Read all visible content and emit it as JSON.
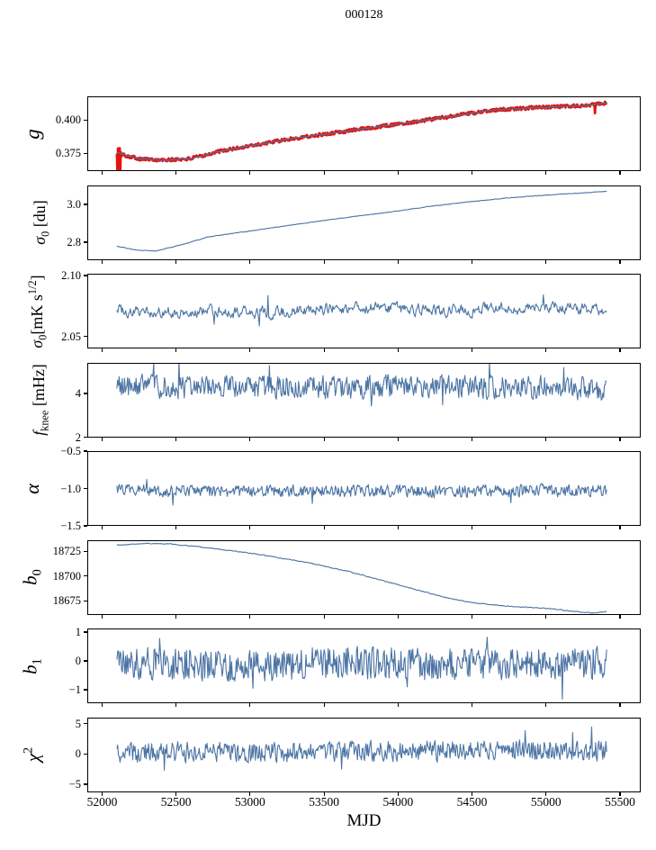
{
  "chart_data": {
    "type": "line",
    "title": "000128",
    "xlabel": "MJD",
    "xlim": [
      51900,
      55640
    ],
    "xticks": [
      {
        "v": 52000,
        "label": "52000"
      },
      {
        "v": 52500,
        "label": "52500"
      },
      {
        "v": 53000,
        "label": "53000"
      },
      {
        "v": 53500,
        "label": "53500"
      },
      {
        "v": 54000,
        "label": "54000"
      },
      {
        "v": 54500,
        "label": "54500"
      },
      {
        "v": 55000,
        "label": "55000"
      },
      {
        "v": 55500,
        "label": "55500"
      }
    ],
    "colors": {
      "line": "#4c74a4",
      "fit": "#e3140e",
      "axis": "#000000",
      "background": "#ffffff"
    },
    "panels": [
      {
        "id": "g",
        "ylabel_segments": [
          {
            "t": "g",
            "italic": true
          }
        ],
        "ylabel_fontsize": 23,
        "ylabel_x": 36,
        "ylim": [
          0.3617,
          0.4176
        ],
        "yticks": [
          {
            "v": 0.4,
            "label": "0.400"
          },
          {
            "v": 0.375,
            "label": "0.375"
          }
        ],
        "series": [
          {
            "name": "g-fit-line-red",
            "color": "#e3140e",
            "lw": 2.8,
            "n": 880,
            "seed": 101,
            "rho": 0.15,
            "noise_amp": 0.0012,
            "xdata": [
              52100,
              55410
            ],
            "keypoints": [
              [
                52100,
                0.3755
              ],
              [
                52160,
                0.3734
              ],
              [
                52260,
                0.3708
              ],
              [
                52420,
                0.3698
              ],
              [
                52600,
                0.371
              ],
              [
                52780,
                0.3762
              ],
              [
                53000,
                0.3806
              ],
              [
                53310,
                0.3864
              ],
              [
                53700,
                0.3924
              ],
              [
                54100,
                0.3984
              ],
              [
                54400,
                0.4034
              ],
              [
                54640,
                0.4072
              ],
              [
                54900,
                0.409
              ],
              [
                55100,
                0.41
              ],
              [
                55250,
                0.4106
              ],
              [
                55410,
                0.4126
              ]
            ],
            "spikes": [
              [
                52104,
                0.3622
              ],
              [
                52109,
                0.3786
              ],
              [
                52113,
                0.362
              ],
              [
                52118,
                0.3788
              ],
              [
                52122,
                0.3624
              ],
              [
                55330,
                0.405
              ]
            ]
          },
          {
            "name": "g-data-line-blue",
            "color": "#4c74a4",
            "lw": 1.1,
            "n": 880,
            "seed": 102,
            "rho": 0.4,
            "noise_amp": 0.0004,
            "xdata": [
              52100,
              55410
            ],
            "keypoints": [
              [
                52100,
                0.3755
              ],
              [
                52160,
                0.3734
              ],
              [
                52260,
                0.3708
              ],
              [
                52420,
                0.3698
              ],
              [
                52600,
                0.371
              ],
              [
                52780,
                0.3762
              ],
              [
                53000,
                0.3806
              ],
              [
                53310,
                0.3864
              ],
              [
                53700,
                0.3924
              ],
              [
                54100,
                0.3984
              ],
              [
                54400,
                0.4034
              ],
              [
                54640,
                0.4072
              ],
              [
                54900,
                0.409
              ],
              [
                55100,
                0.41
              ],
              [
                55250,
                0.4106
              ],
              [
                55410,
                0.4126
              ]
            ],
            "spikes": []
          }
        ]
      },
      {
        "id": "sigma0-du",
        "ylabel_segments": [
          {
            "t": "σ",
            "italic": true
          },
          {
            "t": "0",
            "sub": true
          },
          {
            "t": " [du]"
          }
        ],
        "ylabel_fontsize": 18,
        "ylabel_x": 46,
        "ylim": [
          2.707,
          3.102
        ],
        "yticks": [
          {
            "v": 3.0,
            "label": "3.0"
          },
          {
            "v": 2.8,
            "label": "2.8"
          }
        ],
        "series": [
          {
            "name": "sigma0-du-line",
            "color": "#4c74a4",
            "lw": 1.1,
            "n": 760,
            "seed": 201,
            "rho": 0.45,
            "noise_amp": 0.0012,
            "xdata": [
              52100,
              55410
            ],
            "keypoints": [
              [
                52100,
                2.781
              ],
              [
                52230,
                2.761
              ],
              [
                52360,
                2.7555
              ],
              [
                52550,
                2.791
              ],
              [
                52711,
                2.829
              ],
              [
                53000,
                2.862
              ],
              [
                53200,
                2.884
              ],
              [
                53450,
                2.912
              ],
              [
                53705,
                2.938
              ],
              [
                53950,
                2.962
              ],
              [
                54200,
                2.99
              ],
              [
                54450,
                3.013
              ],
              [
                54700,
                3.033
              ],
              [
                54900,
                3.046
              ],
              [
                55100,
                3.056
              ],
              [
                55250,
                3.063
              ],
              [
                55410,
                3.071
              ]
            ],
            "spikes": []
          }
        ]
      },
      {
        "id": "sigma0-mK",
        "ylabel_segments": [
          {
            "t": "σ",
            "italic": true
          },
          {
            "t": "0",
            "sub": true
          },
          {
            "t": "[mK s"
          },
          {
            "t": "1/2",
            "sup": true
          },
          {
            "t": "]"
          }
        ],
        "ylabel_fontsize": 18,
        "ylabel_x": 42,
        "ylim": [
          2.04,
          2.1015
        ],
        "yticks": [
          {
            "v": 2.1,
            "label": "2.10"
          },
          {
            "v": 2.05,
            "label": "2.05"
          }
        ],
        "series": [
          {
            "name": "sigma0-mK-line",
            "color": "#4c74a4",
            "lw": 1.1,
            "n": 620,
            "seed": 301,
            "rho": 0.5,
            "noise_amp": 0.004,
            "xdata": [
              52100,
              55410
            ],
            "keypoints": [
              [
                52100,
                2.0715
              ],
              [
                52500,
                2.0695
              ],
              [
                52800,
                2.0705
              ],
              [
                53100,
                2.069
              ],
              [
                53400,
                2.072
              ],
              [
                53700,
                2.073
              ],
              [
                54000,
                2.0725
              ],
              [
                54300,
                2.071
              ],
              [
                54600,
                2.072
              ],
              [
                54900,
                2.0725
              ],
              [
                55150,
                2.0735
              ],
              [
                55410,
                2.071
              ]
            ],
            "spikes": [
              [
                53060,
                2.0585
              ],
              [
                53120,
                2.0835
              ],
              [
                54980,
                2.084
              ],
              [
                52760,
                2.06
              ]
            ]
          }
        ]
      },
      {
        "id": "fknee",
        "ylabel_segments": [
          {
            "t": "f",
            "italic": true
          },
          {
            "t": "knee",
            "sub": true
          },
          {
            "t": " [mHz]"
          }
        ],
        "ylabel_fontsize": 18,
        "ylabel_x": 45,
        "ylim": [
          2.0,
          5.42
        ],
        "yticks": [
          {
            "v": 4,
            "label": "4"
          },
          {
            "v": 2,
            "label": "2"
          }
        ],
        "series": [
          {
            "name": "fknee-line",
            "color": "#4c74a4",
            "lw": 1.1,
            "n": 640,
            "seed": 401,
            "rho": 0.2,
            "noise_amp": 0.5,
            "xdata": [
              52100,
              55410
            ],
            "keypoints": [
              [
                52100,
                4.4
              ],
              [
                52600,
                4.3
              ],
              [
                53000,
                4.33
              ],
              [
                53500,
                4.28
              ],
              [
                54000,
                4.32
              ],
              [
                54500,
                4.3
              ],
              [
                55000,
                4.3
              ],
              [
                55410,
                4.22
              ]
            ],
            "spikes": [
              [
                52350,
                5.4
              ],
              [
                52520,
                5.55
              ],
              [
                53130,
                5.3
              ],
              [
                53820,
                3.45
              ],
              [
                54300,
                3.5
              ],
              [
                54620,
                5.45
              ],
              [
                55120,
                5.2
              ]
            ]
          }
        ]
      },
      {
        "id": "alpha",
        "ylabel_segments": [
          {
            "t": "α",
            "italic": true
          }
        ],
        "ylabel_fontsize": 22,
        "ylabel_x": 36,
        "ylim": [
          -1.5,
          -0.5
        ],
        "yticks": [
          {
            "v": -0.5,
            "label": "−0.5"
          },
          {
            "v": -1.0,
            "label": "−1.0"
          },
          {
            "v": -1.5,
            "label": "−1.5"
          }
        ],
        "series": [
          {
            "name": "alpha-line",
            "color": "#4c74a4",
            "lw": 1.1,
            "n": 640,
            "seed": 501,
            "rho": 0.25,
            "noise_amp": 0.075,
            "xdata": [
              52100,
              55410
            ],
            "keypoints": [
              [
                52100,
                -1.02
              ],
              [
                52800,
                -1.04
              ],
              [
                53500,
                -1.03
              ],
              [
                54200,
                -1.04
              ],
              [
                54900,
                -1.03
              ],
              [
                55410,
                -1.03
              ]
            ],
            "spikes": [
              [
                52300,
                -0.88
              ],
              [
                52480,
                -1.22
              ],
              [
                53420,
                -1.2
              ],
              [
                54760,
                -1.19
              ]
            ]
          }
        ]
      },
      {
        "id": "b0",
        "ylabel_segments": [
          {
            "t": "b",
            "italic": true
          },
          {
            "t": "0",
            "sub": true
          }
        ],
        "ylabel_fontsize": 21,
        "ylabel_x": 36,
        "ylim": [
          18661,
          18736.5
        ],
        "yticks": [
          {
            "v": 18725,
            "label": "18725"
          },
          {
            "v": 18700,
            "label": "18700"
          },
          {
            "v": 18675,
            "label": "18675"
          }
        ],
        "series": [
          {
            "name": "b0-line",
            "color": "#4c74a4",
            "lw": 1.1,
            "n": 760,
            "seed": 601,
            "rho": 0.45,
            "noise_amp": 0.35,
            "xdata": [
              52100,
              55410
            ],
            "keypoints": [
              [
                52100,
                18731.5
              ],
              [
                52280,
                18733.3
              ],
              [
                52450,
                18732.8
              ],
              [
                52650,
                18730
              ],
              [
                52900,
                18725.5
              ],
              [
                53150,
                18720
              ],
              [
                53400,
                18713.5
              ],
              [
                53650,
                18705.5
              ],
              [
                53900,
                18695.5
              ],
              [
                54100,
                18687.5
              ],
              [
                54340,
                18678
              ],
              [
                54500,
                18673.5
              ],
              [
                54700,
                18670.5
              ],
              [
                54900,
                18668.5
              ],
              [
                55050,
                18667
              ],
              [
                55200,
                18664.5
              ],
              [
                55320,
                18663
              ],
              [
                55410,
                18664.5
              ]
            ],
            "spikes": []
          }
        ]
      },
      {
        "id": "b1",
        "ylabel_segments": [
          {
            "t": "b",
            "italic": true
          },
          {
            "t": "1",
            "sub": true
          }
        ],
        "ylabel_fontsize": 21,
        "ylabel_x": 36,
        "ylim": [
          -1.47,
          1.125
        ],
        "yticks": [
          {
            "v": 1,
            "label": "1"
          },
          {
            "v": 0,
            "label": "0"
          },
          {
            "v": -1,
            "label": "−1"
          }
        ],
        "series": [
          {
            "name": "b1-line",
            "color": "#4c74a4",
            "lw": 1.1,
            "n": 620,
            "seed": 701,
            "rho": 0.08,
            "noise_amp": 0.55,
            "xdata": [
              52100,
              55410
            ],
            "keypoints": [
              [
                52100,
                -0.05
              ],
              [
                52900,
                -0.16
              ],
              [
                53600,
                -0.05
              ],
              [
                54300,
                -0.12
              ],
              [
                55410,
                -0.06
              ]
            ],
            "spikes": [
              [
                52390,
                0.78
              ],
              [
                53020,
                -0.95
              ],
              [
                54060,
                -0.9
              ],
              [
                54600,
                0.82
              ],
              [
                55108,
                -1.33
              ]
            ]
          }
        ]
      },
      {
        "id": "chi2",
        "ylabel_segments": [
          {
            "t": "χ",
            "italic": true
          },
          {
            "t": "2",
            "sup": true
          }
        ],
        "ylabel_fontsize": 21,
        "ylabel_x": 36,
        "ylim": [
          -6.26,
          6.04
        ],
        "yticks": [
          {
            "v": 5,
            "label": "5"
          },
          {
            "v": 0,
            "label": "0"
          },
          {
            "v": -5,
            "label": "−5"
          }
        ],
        "series": [
          {
            "name": "chi2-line",
            "color": "#4c74a4",
            "lw": 1.1,
            "n": 620,
            "seed": 801,
            "rho": 0.2,
            "noise_amp": 1.6,
            "xdata": [
              52100,
              55410
            ],
            "keypoints": [
              [
                52100,
                0.35
              ],
              [
                53000,
                0.3
              ],
              [
                53800,
                0.5
              ],
              [
                54600,
                0.55
              ],
              [
                55410,
                0.7
              ]
            ],
            "spikes": [
              [
                52420,
                -2.6
              ],
              [
                53620,
                -2.4
              ],
              [
                54860,
                3.9
              ],
              [
                55180,
                3.6
              ],
              [
                55310,
                4.5
              ]
            ]
          }
        ]
      }
    ]
  }
}
